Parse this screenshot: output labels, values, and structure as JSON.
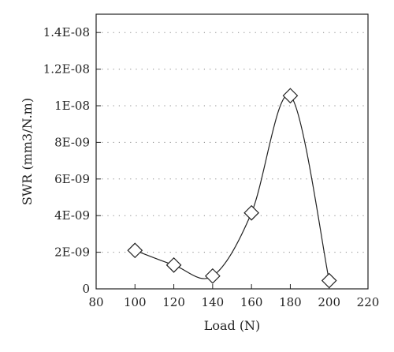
{
  "chart_data": {
    "type": "scatter",
    "xlabel": "Load (N)",
    "ylabel": "SWR (mm3/N.m)",
    "xlim": [
      80,
      220
    ],
    "ylim": [
      0,
      1.5e-08
    ],
    "x_ticks": [
      80,
      100,
      120,
      140,
      160,
      180,
      200,
      220
    ],
    "x_tick_labels": [
      "80",
      "100",
      "120",
      "140",
      "160",
      "180",
      "200",
      "220"
    ],
    "y_ticks": [
      0,
      2e-09,
      4e-09,
      6e-09,
      8e-09,
      1e-08,
      1.2e-08,
      1.4e-08
    ],
    "y_tick_labels": [
      "0",
      "2E-09",
      "4E-09",
      "6E-09",
      "8E-09",
      "1E-08",
      "1.2E-08",
      "1.4E-08"
    ],
    "grid": "horizontal dotted",
    "series": [
      {
        "marker": "diamond-open",
        "line": "smooth",
        "color": "#222222",
        "x": [
          100,
          120,
          140,
          160,
          180,
          200
        ],
        "y": [
          2.1e-09,
          1.3e-09,
          7e-10,
          4.15e-09,
          1.055e-08,
          4.5e-10
        ]
      }
    ]
  }
}
